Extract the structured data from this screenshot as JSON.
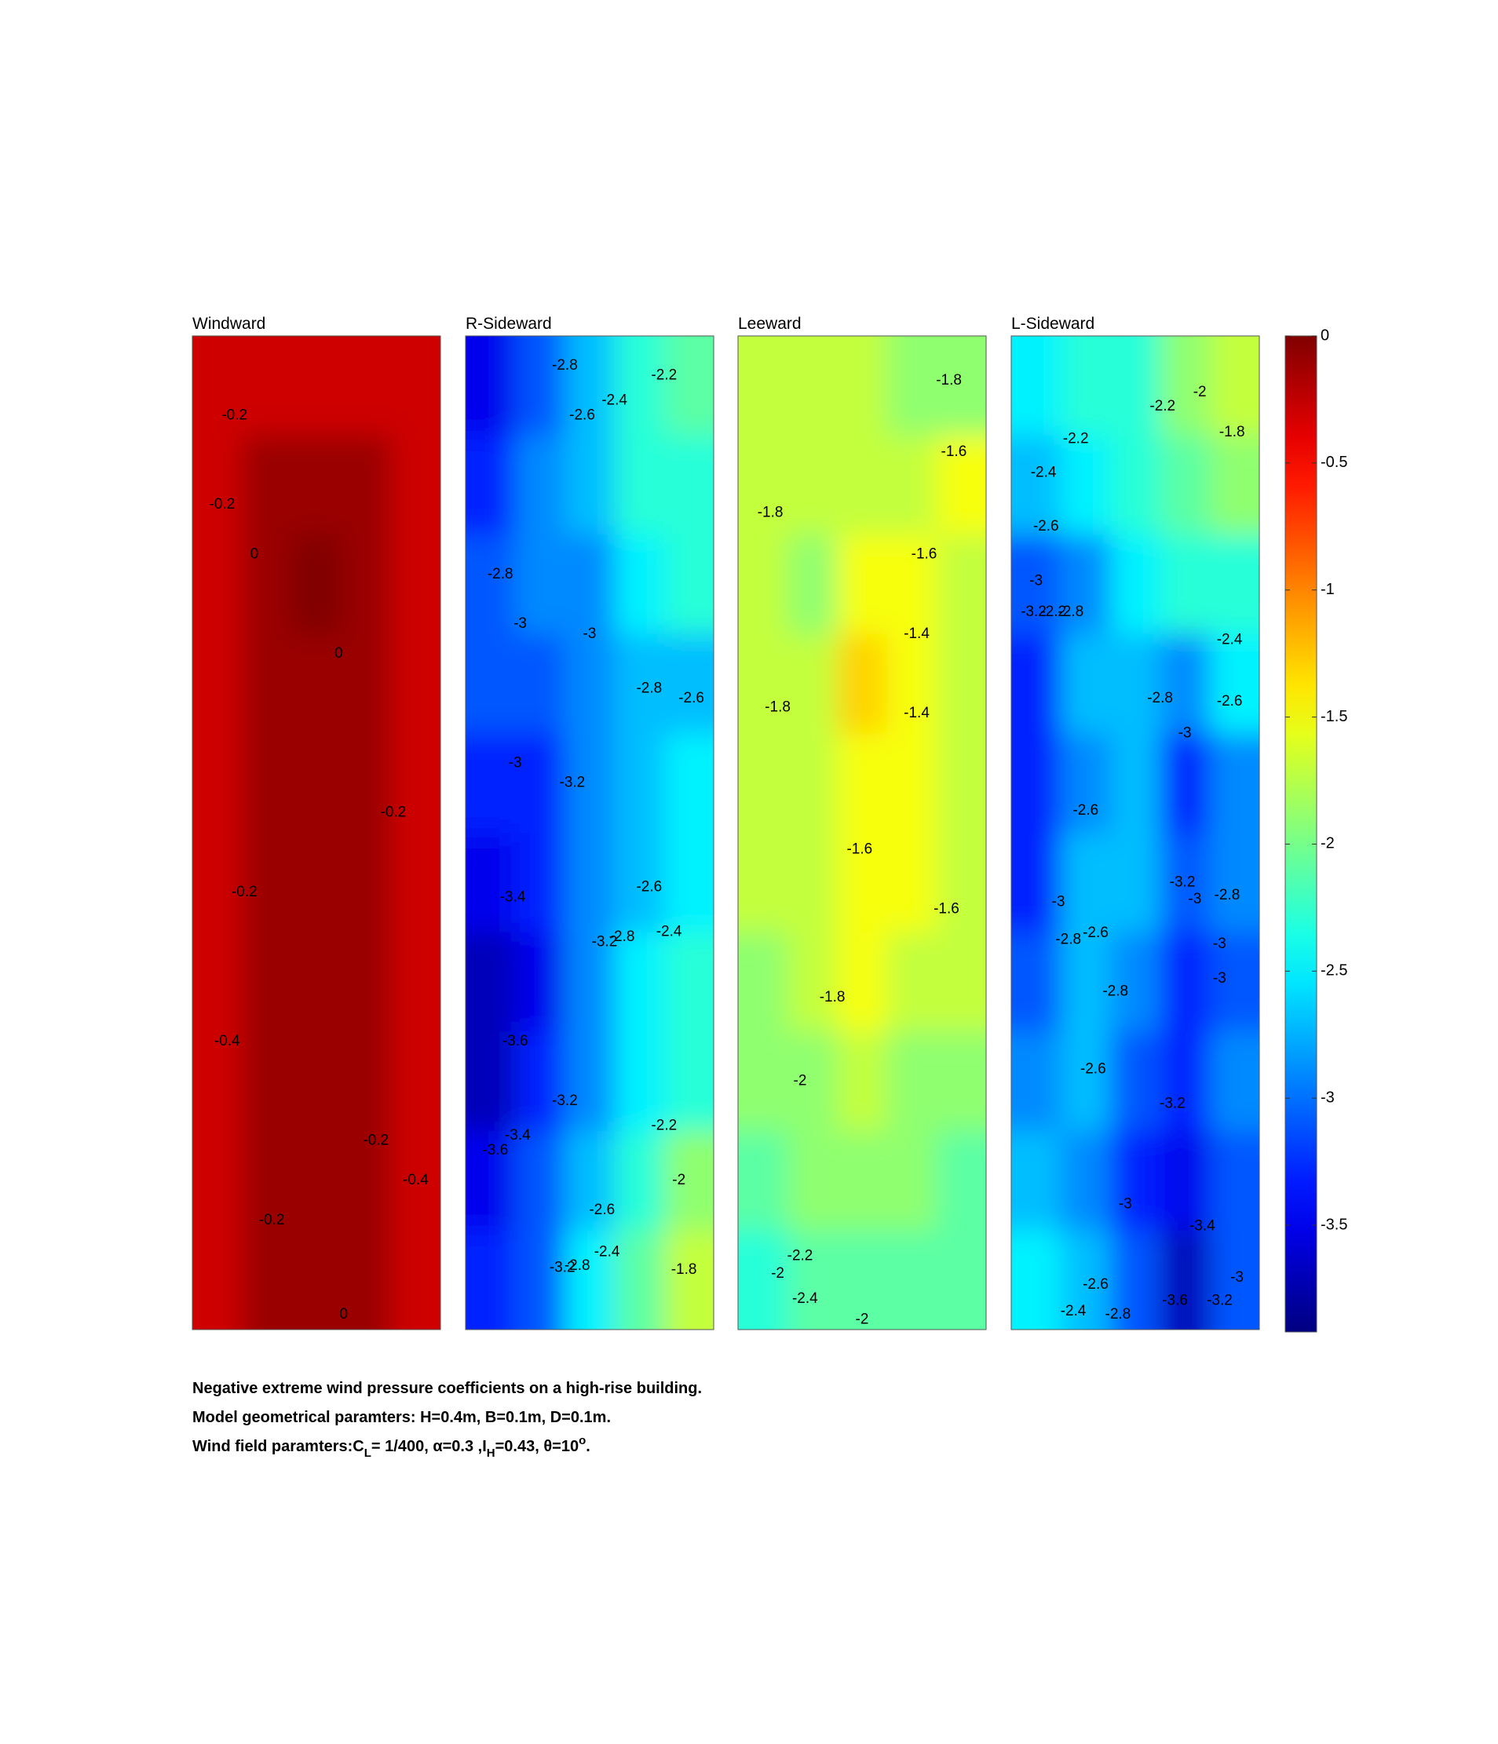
{
  "chart_data": {
    "type": "contour",
    "level_step": 0.2,
    "panels": [
      {
        "title": "Windward",
        "z": [
          [
            -0.3,
            -0.25,
            -0.25,
            -0.3,
            -0.3
          ],
          [
            -0.3,
            -0.15,
            -0.15,
            -0.15,
            -0.3
          ],
          [
            -0.25,
            -0.1,
            0.0,
            -0.1,
            -0.3
          ],
          [
            -0.3,
            -0.15,
            -0.05,
            -0.15,
            -0.3
          ],
          [
            -0.3,
            -0.15,
            -0.1,
            -0.15,
            -0.3
          ],
          [
            -0.3,
            -0.15,
            -0.15,
            -0.15,
            -0.3
          ],
          [
            -0.4,
            -0.15,
            -0.15,
            -0.2,
            -0.35
          ],
          [
            -0.35,
            -0.15,
            -0.15,
            -0.2,
            -0.4
          ],
          [
            -0.3,
            -0.15,
            -0.15,
            -0.2,
            -0.35
          ],
          [
            -0.3,
            -0.2,
            -0.05,
            -0.2,
            -0.3
          ]
        ],
        "contour_labels": [
          -0.2,
          -0.2,
          0,
          0,
          -0.2,
          -0.2,
          -0.4,
          -0.2,
          -0.4,
          -0.2,
          0
        ]
      },
      {
        "title": "R-Sideward",
        "z": [
          [
            -3.5,
            -3.1,
            -2.7,
            -2.4,
            -2.2
          ],
          [
            -3.3,
            -3.0,
            -2.7,
            -2.4,
            -2.3
          ],
          [
            -3.1,
            -3.0,
            -2.9,
            -2.6,
            -2.4
          ],
          [
            -3.2,
            -3.1,
            -2.9,
            -2.8,
            -2.7
          ],
          [
            -3.4,
            -3.3,
            -3.0,
            -2.8,
            -2.6
          ],
          [
            -3.6,
            -3.4,
            -3.0,
            -2.7,
            -2.5
          ],
          [
            -3.8,
            -3.5,
            -3.0,
            -2.6,
            -2.4
          ],
          [
            -3.7,
            -3.3,
            -2.9,
            -2.5,
            -2.3
          ],
          [
            -3.5,
            -3.1,
            -2.7,
            -2.3,
            -2.0
          ],
          [
            -3.4,
            -3.1,
            -2.6,
            -2.2,
            -1.8
          ]
        ],
        "contour_labels": [
          -2.8,
          -2.2,
          -2.6,
          -2.4,
          -2.8,
          -3,
          -3,
          -2.8,
          -2.6,
          -3,
          -3.2,
          -3.4,
          -2.6,
          -3.2,
          -2.8,
          -2.4,
          -3.6,
          -3.2,
          -3.4,
          -3.6,
          -2.2,
          -2,
          -2.6,
          -2.4,
          -3.2,
          -2.8,
          -1.8
        ]
      },
      {
        "title": "Leeward",
        "z": [
          [
            -1.8,
            -1.8,
            -1.8,
            -2.0,
            -1.9
          ],
          [
            -1.8,
            -1.7,
            -1.7,
            -1.7,
            -1.6
          ],
          [
            -1.8,
            -1.9,
            -1.6,
            -1.6,
            -1.7
          ],
          [
            -1.8,
            -1.8,
            -1.4,
            -1.5,
            -1.7
          ],
          [
            -1.8,
            -1.7,
            -1.5,
            -1.55,
            -1.7
          ],
          [
            -1.7,
            -1.7,
            -1.6,
            -1.55,
            -1.7
          ],
          [
            -1.9,
            -1.8,
            -1.6,
            -1.7,
            -1.8
          ],
          [
            -2.0,
            -1.9,
            -1.8,
            -1.85,
            -1.9
          ],
          [
            -2.2,
            -2.0,
            -1.9,
            -2.0,
            -2.1
          ],
          [
            -2.4,
            -2.2,
            -2.1,
            -2.1,
            -2.1
          ]
        ],
        "contour_labels": [
          -1.8,
          -1.6,
          -1.8,
          -1.6,
          -1.4,
          -1.8,
          -1.4,
          -1.6,
          -1.6,
          -1.8,
          -2,
          -2.2,
          -2,
          -2.4,
          -2
        ]
      },
      {
        "title": "L-Sideward",
        "z": [
          [
            -2.6,
            -2.4,
            -2.3,
            -2.0,
            -1.8
          ],
          [
            -2.7,
            -2.5,
            -2.3,
            -2.2,
            -2.0
          ],
          [
            -3.2,
            -2.9,
            -2.6,
            -2.4,
            -2.3
          ],
          [
            -3.4,
            -2.8,
            -2.8,
            -2.9,
            -2.5
          ],
          [
            -3.4,
            -2.9,
            -2.8,
            -3.3,
            -2.9
          ],
          [
            -3.3,
            -2.8,
            -2.8,
            -3.1,
            -2.9
          ],
          [
            -3.2,
            -2.7,
            -3.0,
            -3.4,
            -3.1
          ],
          [
            -3.0,
            -2.8,
            -3.2,
            -3.3,
            -3.0
          ],
          [
            -2.8,
            -2.9,
            -3.3,
            -3.6,
            -3.2
          ],
          [
            -2.5,
            -2.7,
            -3.2,
            -3.8,
            -3.2
          ]
        ],
        "contour_labels": [
          -2.2,
          -2,
          -2.2,
          -1.8,
          -2.4,
          -2.6,
          -3,
          -3.2,
          -2.2,
          -2.8,
          -2.4,
          -2.8,
          -3,
          -2.6,
          -2.6,
          -3.2,
          -3,
          -2.8,
          -3,
          -2.8,
          -2.6,
          -3,
          -3,
          -2.8,
          -2.6,
          -3.2,
          -3,
          -3.4,
          -2.6,
          -3,
          -2.4,
          -2.8,
          -3.6,
          -3.2
        ]
      }
    ],
    "clim": [
      -3.92,
      0
    ],
    "cticks": [
      0,
      -0.5,
      -1,
      -1.5,
      -2,
      -2.5,
      -3,
      -3.5
    ],
    "caption": [
      "Negative extreme wind pressure coefficients on a high-rise building.",
      "Model geometrical paramters: H=0.4m, B=0.1m, D=0.1m."
    ],
    "caption_parts": [
      {
        "text": "Wind field paramters:C",
        "script": "base"
      },
      {
        "text": "L",
        "script": "sub"
      },
      {
        "text": "= 1/400, α=0.3 ,I",
        "script": "base"
      },
      {
        "text": "H",
        "script": "sub"
      },
      {
        "text": "=0.43, θ=10",
        "script": "base"
      },
      {
        "text": "o",
        "script": "sup"
      },
      {
        "text": ".",
        "script": "base"
      }
    ]
  }
}
